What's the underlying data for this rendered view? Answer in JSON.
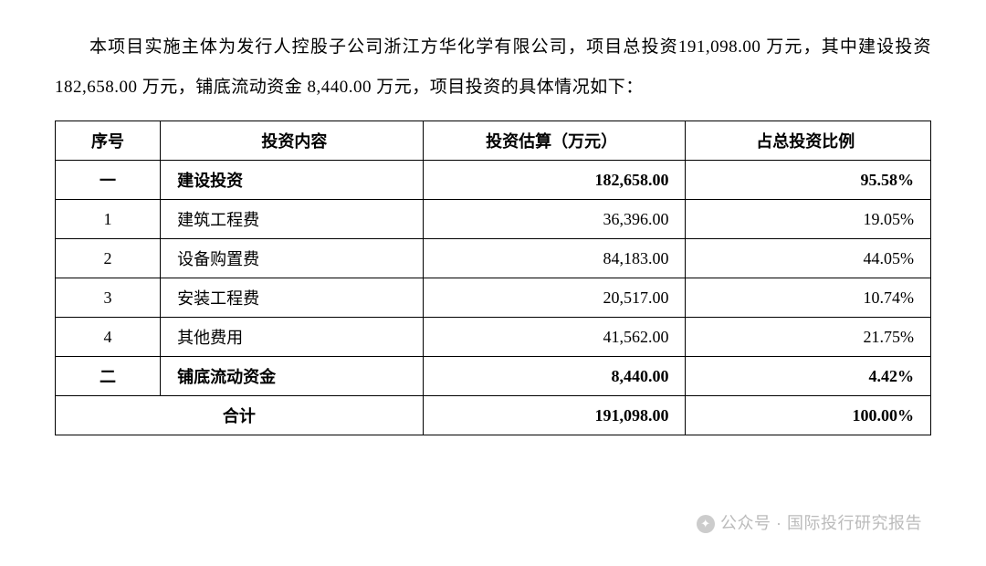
{
  "paragraph": "本项目实施主体为发行人控股子公司浙江方华化学有限公司，项目总投资191,098.00 万元，其中建设投资 182,658.00 万元，铺底流动资金 8,440.00 万元，项目投资的具体情况如下：",
  "table": {
    "columns": [
      "序号",
      "投资内容",
      "投资估算（万元）",
      "占总投资比例"
    ],
    "col_widths_pct": [
      12,
      30,
      30,
      28
    ],
    "col_align": [
      "center",
      "left",
      "right",
      "right"
    ],
    "border_color": "#000000",
    "background_color": "#ffffff",
    "font_size_pt": 18,
    "rows": [
      {
        "idx": "一",
        "name": "建设投资",
        "amount": "182,658.00",
        "pct": "95.58%",
        "bold": true
      },
      {
        "idx": "1",
        "name": "建筑工程费",
        "amount": "36,396.00",
        "pct": "19.05%",
        "bold": false
      },
      {
        "idx": "2",
        "name": "设备购置费",
        "amount": "84,183.00",
        "pct": "44.05%",
        "bold": false
      },
      {
        "idx": "3",
        "name": "安装工程费",
        "amount": "20,517.00",
        "pct": "10.74%",
        "bold": false
      },
      {
        "idx": "4",
        "name": "其他费用",
        "amount": "41,562.00",
        "pct": "21.75%",
        "bold": false
      },
      {
        "idx": "二",
        "name": "铺底流动资金",
        "amount": "8,440.00",
        "pct": "4.42%",
        "bold": true
      }
    ],
    "footer": {
      "label": "合计",
      "amount": "191,098.00",
      "pct": "100.00%"
    }
  },
  "watermark": {
    "prefix": "公众号 · ",
    "name": "国际投行研究报告",
    "color": "#bbbbbb"
  }
}
